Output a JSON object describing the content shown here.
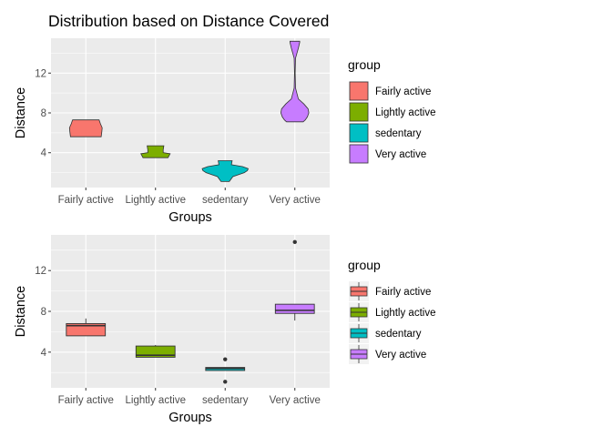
{
  "title": "Distribution based on Distance Covered",
  "groups": [
    "Fairly active",
    "Lightly active",
    "sedentary",
    "Very active"
  ],
  "colors": {
    "Fairly active": "#F8766D",
    "Lightly active": "#7CAE00",
    "sedentary": "#00BFC4",
    "Very active": "#C77CFF"
  },
  "legend": {
    "title": "group"
  },
  "chart_data": [
    {
      "type": "violin",
      "title": "Distribution based on Distance Covered",
      "xlabel": "Groups",
      "ylabel": "Distance",
      "categories": [
        "Fairly active",
        "Lightly active",
        "sedentary",
        "Very active"
      ],
      "yticks": [
        4,
        8,
        12
      ],
      "ylim": [
        0.5,
        15.5
      ],
      "legend_title": "group",
      "legend_position": "right",
      "grid": true,
      "violins": [
        {
          "group": "Fairly active",
          "profile": [
            [
              5.6,
              0.44
            ],
            [
              6.1,
              0.46
            ],
            [
              6.5,
              0.47
            ],
            [
              6.9,
              0.42
            ],
            [
              7.3,
              0.38
            ]
          ]
        },
        {
          "group": "Lightly active",
          "profile": [
            [
              3.5,
              0.36
            ],
            [
              3.9,
              0.42
            ],
            [
              4.0,
              0.22
            ],
            [
              4.3,
              0.22
            ],
            [
              4.7,
              0.24
            ]
          ]
        },
        {
          "group": "sedentary",
          "profile": [
            [
              1.1,
              0.12
            ],
            [
              1.6,
              0.22
            ],
            [
              2.0,
              0.55
            ],
            [
              2.2,
              0.64
            ],
            [
              2.4,
              0.66
            ],
            [
              2.6,
              0.5
            ],
            [
              2.8,
              0.18
            ],
            [
              3.2,
              0.2
            ]
          ]
        },
        {
          "group": "Very active",
          "profile": [
            [
              7.1,
              0.24
            ],
            [
              7.3,
              0.3
            ],
            [
              7.6,
              0.36
            ],
            [
              8.0,
              0.4
            ],
            [
              8.4,
              0.38
            ],
            [
              8.9,
              0.26
            ],
            [
              9.4,
              0.1
            ],
            [
              10.5,
              0.02
            ],
            [
              12.0,
              0.01
            ],
            [
              13.5,
              0.02
            ],
            [
              14.5,
              0.1
            ],
            [
              15.1,
              0.14
            ],
            [
              15.2,
              0.14
            ]
          ]
        }
      ]
    },
    {
      "type": "box",
      "xlabel": "Groups",
      "ylabel": "Distance",
      "categories": [
        "Fairly active",
        "Lightly active",
        "sedentary",
        "Very active"
      ],
      "yticks": [
        4,
        8,
        12
      ],
      "ylim": [
        0.5,
        15.5
      ],
      "legend_title": "group",
      "legend_position": "right",
      "grid": true,
      "boxes": [
        {
          "group": "Fairly active",
          "min": 5.6,
          "q1": 5.6,
          "median": 6.6,
          "q3": 6.8,
          "max": 7.3,
          "outliers": []
        },
        {
          "group": "Lightly active",
          "min": 3.5,
          "q1": 3.5,
          "median": 3.7,
          "q3": 4.6,
          "max": 4.7,
          "outliers": []
        },
        {
          "group": "sedentary",
          "min": 2.2,
          "q1": 2.2,
          "median": 2.4,
          "q3": 2.5,
          "max": 2.5,
          "outliers": [
            3.3,
            1.1
          ]
        },
        {
          "group": "Very active",
          "min": 7.1,
          "q1": 7.8,
          "median": 8.1,
          "q3": 8.7,
          "max": 8.7,
          "outliers": [
            14.8
          ]
        }
      ]
    }
  ]
}
